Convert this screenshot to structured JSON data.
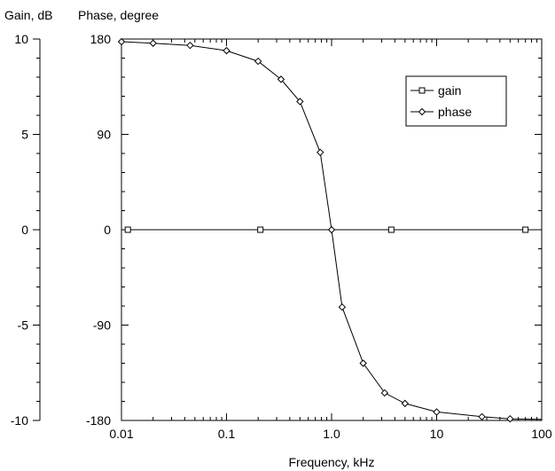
{
  "chart_data": {
    "type": "line",
    "title": "",
    "xlabel": "Frequency, kHz",
    "x_scale": "log",
    "xlim": [
      0.01,
      100
    ],
    "x_ticks": [
      0.01,
      0.1,
      1.0,
      10,
      100
    ],
    "x_tick_labels": [
      "0.01",
      "0.1",
      "1.0",
      "10",
      "100"
    ],
    "left_axis": {
      "label": "Gain, dB",
      "ylim": [
        -10,
        10
      ],
      "ticks": [
        10,
        5,
        0,
        -5,
        -10
      ],
      "tick_labels": [
        "10",
        "5",
        "0",
        "-5",
        "-10"
      ]
    },
    "right_axis": {
      "label": "Phase, degree",
      "ylim": [
        -180,
        180
      ],
      "ticks": [
        180,
        90,
        0,
        -90,
        -180
      ],
      "tick_labels": [
        "180",
        "90",
        "0",
        "-90",
        "-180"
      ]
    },
    "grid": false,
    "legend": {
      "position": "top-right",
      "entries": [
        {
          "name": "gain",
          "marker": "square"
        },
        {
          "name": "phase",
          "marker": "diamond"
        }
      ]
    },
    "series": [
      {
        "name": "gain",
        "axis": "left",
        "marker": "square",
        "x": [
          0.0115,
          0.21,
          3.7,
          70
        ],
        "y": [
          0,
          0,
          0,
          0
        ]
      },
      {
        "name": "phase",
        "axis": "right",
        "marker": "diamond",
        "x": [
          0.01,
          0.02,
          0.045,
          0.1,
          0.2,
          0.33,
          0.5,
          0.78,
          1.0,
          1.26,
          2.0,
          3.2,
          5,
          10,
          27,
          50
        ],
        "y": [
          177.5,
          176,
          174,
          169,
          159,
          142,
          121,
          73,
          0,
          -73,
          -126,
          -154,
          -164,
          -172,
          -176.5,
          -178.5
        ]
      }
    ]
  }
}
